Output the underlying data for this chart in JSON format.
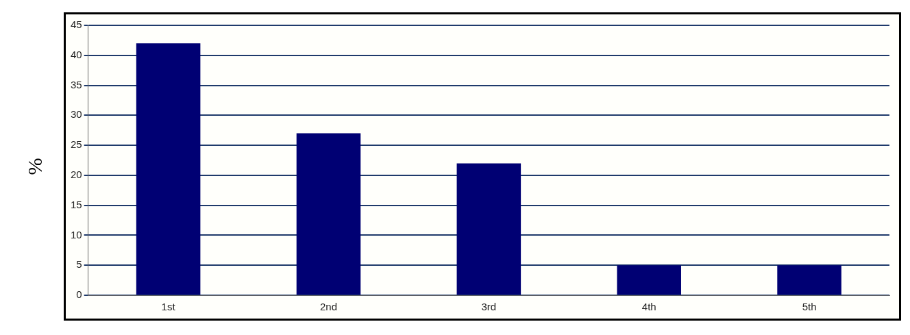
{
  "chart_data": {
    "type": "bar",
    "ylabel": "%",
    "categories": [
      "1st",
      "2nd",
      "3rd",
      "4th",
      "5th"
    ],
    "values": [
      42,
      27,
      22,
      5,
      5
    ],
    "color": "#000073",
    "ylim": [
      0,
      45
    ],
    "yticks": [
      0,
      5,
      10,
      15,
      20,
      25,
      30,
      35,
      40,
      45
    ],
    "grid": "y",
    "legend": false
  }
}
